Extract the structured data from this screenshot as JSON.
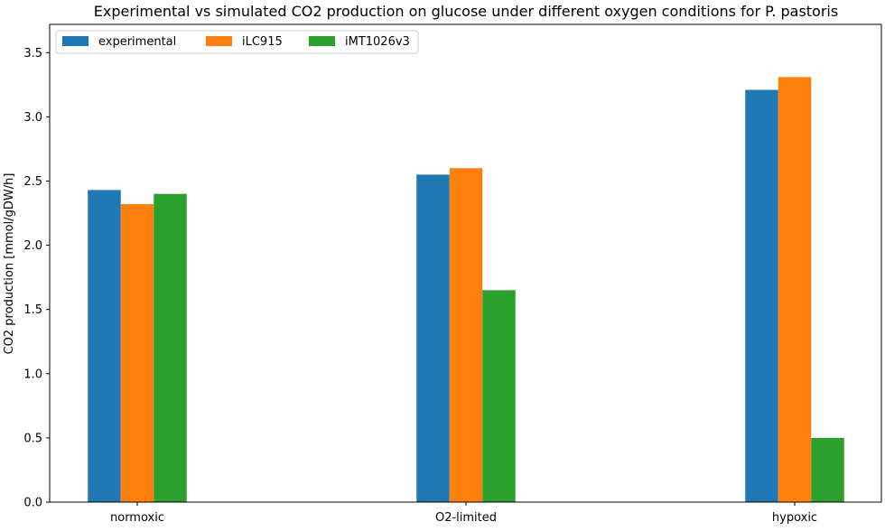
{
  "chart_data": {
    "type": "bar",
    "title": "Experimental vs simulated CO2 production on glucose under different oxygen conditions for P. pastoris",
    "xlabel": "",
    "ylabel": "CO2 production [mmol/gDW/h]",
    "ylim": [
      0,
      3.72
    ],
    "yticks": [
      "0.0",
      "0.5",
      "1.0",
      "1.5",
      "2.0",
      "2.5",
      "3.0",
      "3.5"
    ],
    "categories": [
      "normoxic",
      "O2-limited",
      "hypoxic"
    ],
    "series": [
      {
        "name": "experimental",
        "color": "#1f77b4",
        "values": [
          2.43,
          2.55,
          3.21
        ]
      },
      {
        "name": "iLC915",
        "color": "#ff7f0e",
        "values": [
          2.32,
          2.6,
          3.31
        ]
      },
      {
        "name": "iMT1026v3",
        "color": "#2ca02c",
        "values": [
          2.4,
          1.65,
          0.5
        ]
      }
    ],
    "legend_position": "upper-left",
    "grid": false
  }
}
